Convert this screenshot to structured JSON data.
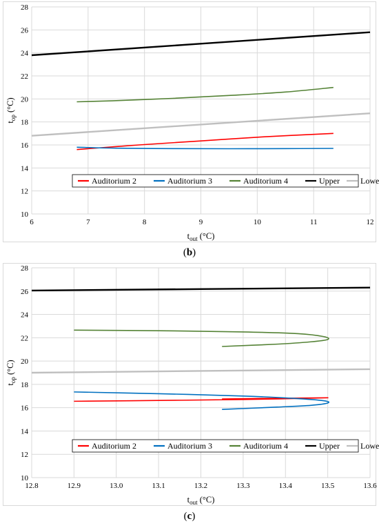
{
  "captions": {
    "b": "b",
    "c": "c"
  },
  "chart_data": [
    {
      "type": "line",
      "xlabel": {
        "base": "t",
        "sub": "out",
        "unit": " (°C)"
      },
      "ylabel": {
        "base": "t",
        "sub": "op",
        "unit": " (°C)"
      },
      "xlim": [
        6,
        12
      ],
      "ylim": [
        10,
        28
      ],
      "xticks": [
        6,
        7,
        8,
        9,
        10,
        11,
        12
      ],
      "yticks": [
        10,
        12,
        14,
        16,
        18,
        20,
        22,
        24,
        26,
        28
      ],
      "xtick_labels": [
        "6",
        "7",
        "8",
        "9",
        "10",
        "11",
        "12"
      ],
      "ytick_labels": [
        "10",
        "12",
        "14",
        "16",
        "18",
        "20",
        "22",
        "24",
        "26",
        "28"
      ],
      "grid": true,
      "legend_position": "lower-center",
      "series": [
        {
          "name": "Auditorium 2",
          "color": "#ff0000",
          "x": [
            6.8,
            7.9,
            9.0,
            10.1,
            11.35
          ],
          "y": [
            15.6,
            16.0,
            16.35,
            16.7,
            17.0
          ]
        },
        {
          "name": "Auditorium 3",
          "color": "#0070c0",
          "x": [
            6.8,
            7.5,
            8.5,
            9.5,
            10.5,
            11.35
          ],
          "y": [
            15.8,
            15.72,
            15.68,
            15.67,
            15.68,
            15.7
          ]
        },
        {
          "name": "Auditorium 4",
          "color": "#548235",
          "x": [
            6.8,
            7.5,
            8.5,
            9.5,
            10.5,
            11.35
          ],
          "y": [
            19.75,
            19.85,
            20.05,
            20.3,
            20.6,
            21.0
          ]
        },
        {
          "name": "Upper",
          "color": "#000000",
          "x": [
            6,
            12
          ],
          "y": [
            23.8,
            25.8
          ]
        },
        {
          "name": "Lower",
          "color": "#bfbfbf",
          "x": [
            6,
            12
          ],
          "y": [
            16.8,
            18.75
          ]
        }
      ]
    },
    {
      "type": "line",
      "xlabel": {
        "base": "t",
        "sub": "out",
        "unit": " (°C)"
      },
      "ylabel": {
        "base": "t",
        "sub": "op",
        "unit": " (°C)"
      },
      "xlim": [
        12.8,
        13.6
      ],
      "ylim": [
        10,
        28
      ],
      "xticks": [
        12.8,
        12.9,
        13.0,
        13.1,
        13.2,
        13.3,
        13.4,
        13.5,
        13.6
      ],
      "yticks": [
        10,
        12,
        14,
        16,
        18,
        20,
        22,
        24,
        26,
        28
      ],
      "xtick_labels": [
        "12.8",
        "12.9",
        "13.0",
        "13.1",
        "13.2",
        "13.3",
        "13.4",
        "13.5",
        "13.6"
      ],
      "ytick_labels": [
        "10",
        "12",
        "14",
        "16",
        "18",
        "20",
        "22",
        "24",
        "26",
        "28"
      ],
      "grid": true,
      "legend_position": "lower-center",
      "series": [
        {
          "name": "Auditorium 2",
          "color": "#ff0000",
          "x": [
            12.9,
            13.1,
            13.3,
            13.5,
            13.25
          ],
          "y": [
            16.55,
            16.62,
            16.7,
            16.85,
            16.75
          ]
        },
        {
          "name": "Auditorium 3",
          "color": "#0070c0",
          "x": [
            12.9,
            13.1,
            13.3,
            13.42,
            13.49,
            13.5,
            13.46,
            13.38,
            13.25
          ],
          "y": [
            17.35,
            17.2,
            17.0,
            16.8,
            16.6,
            16.4,
            16.2,
            16.05,
            15.85
          ]
        },
        {
          "name": "Auditorium 4",
          "color": "#548235",
          "x": [
            12.9,
            13.1,
            13.3,
            13.43,
            13.49,
            13.5,
            13.46,
            13.38,
            13.25
          ],
          "y": [
            22.65,
            22.6,
            22.5,
            22.35,
            22.1,
            21.85,
            21.65,
            21.45,
            21.25
          ]
        },
        {
          "name": "Upper",
          "color": "#000000",
          "x": [
            12.8,
            13.6
          ],
          "y": [
            26.05,
            26.3
          ]
        },
        {
          "name": "Lower",
          "color": "#bfbfbf",
          "x": [
            12.8,
            13.6
          ],
          "y": [
            19.0,
            19.3
          ]
        }
      ]
    }
  ]
}
